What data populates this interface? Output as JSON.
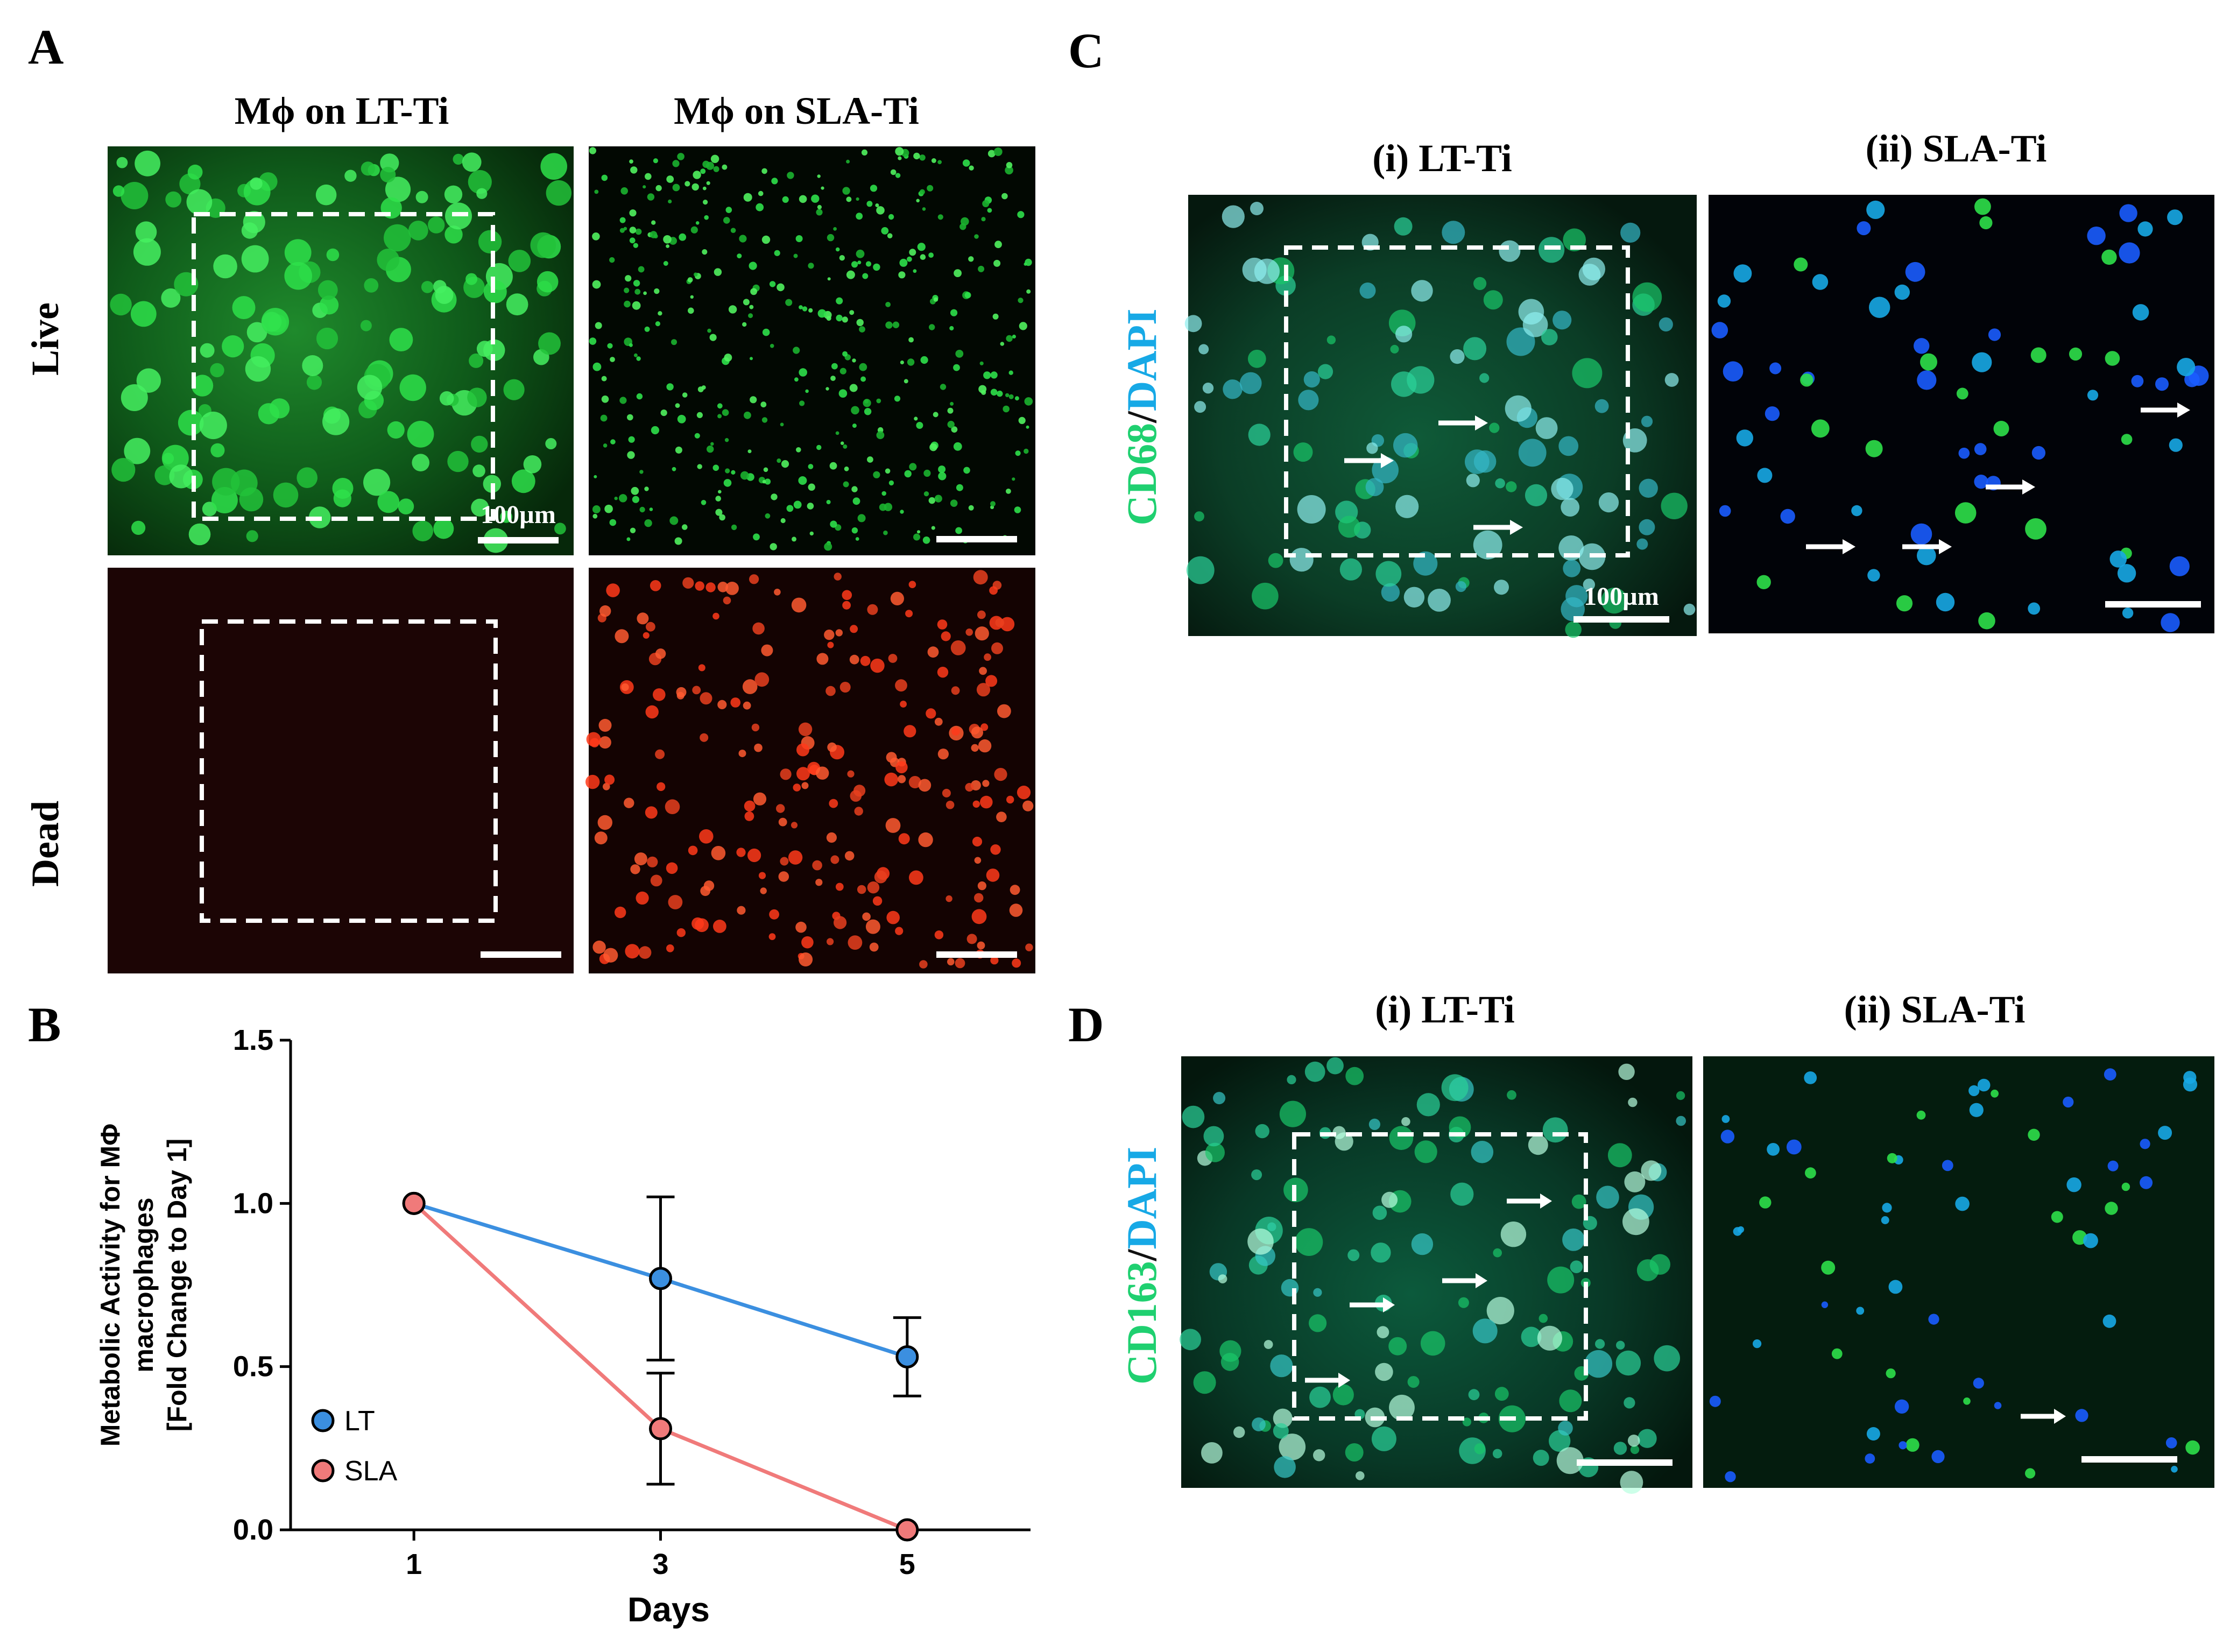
{
  "panel_a": {
    "letter": "A",
    "col_headers": [
      "Mϕ on LT-Ti",
      "Mϕ on SLA-Ti"
    ],
    "row_labels": [
      "Live",
      "Dead"
    ],
    "scale_label": "100µm"
  },
  "panel_b": {
    "letter": "B"
  },
  "panel_c": {
    "letter": "C",
    "col_headers": [
      "(i) LT-Ti",
      "(ii) SLA-Ti"
    ],
    "stain_marker": "CD68",
    "stain_sep": "/",
    "stain_dapi": "DAPI",
    "scale_label": "100µm"
  },
  "panel_d": {
    "letter": "D",
    "col_headers": [
      "(i) LT-Ti",
      "(ii) SLA-Ti"
    ],
    "stain_marker": "CD163",
    "stain_sep": "/",
    "stain_dapi": "DAPI"
  },
  "colors": {
    "live_green": "#2ee04a",
    "dead_red": "#ff3a1a",
    "cd_green": "#1fd070",
    "dapi_blue": "#17a9e6",
    "lt_series": "#3b8fe0",
    "sla_series": "#f07a7a"
  },
  "chart_data": {
    "type": "line",
    "title": "",
    "xlabel": "Days",
    "ylabel_lines": [
      "Metabolic Activity for MΦ",
      "macrophages",
      "[Fold Change to Day 1]"
    ],
    "x": [
      1,
      3,
      5
    ],
    "x_tick_labels": [
      "1",
      "3",
      "5"
    ],
    "ylim": [
      0,
      1.5
    ],
    "y_ticks": [
      0.0,
      0.5,
      1.0,
      1.5
    ],
    "y_tick_labels": [
      "0.0",
      "0.5",
      "1.0",
      "1.5"
    ],
    "series": [
      {
        "name": "LT",
        "values": [
          1.0,
          0.77,
          0.53
        ],
        "errors": [
          0,
          0.25,
          0.12
        ],
        "color": "#3b8fe0"
      },
      {
        "name": "SLA",
        "values": [
          1.0,
          0.31,
          0.0
        ],
        "errors": [
          0,
          0.17,
          0
        ],
        "color": "#f07a7a"
      }
    ],
    "legend": [
      "LT",
      "SLA"
    ],
    "legend_position": "bottom-left",
    "grid": false
  }
}
